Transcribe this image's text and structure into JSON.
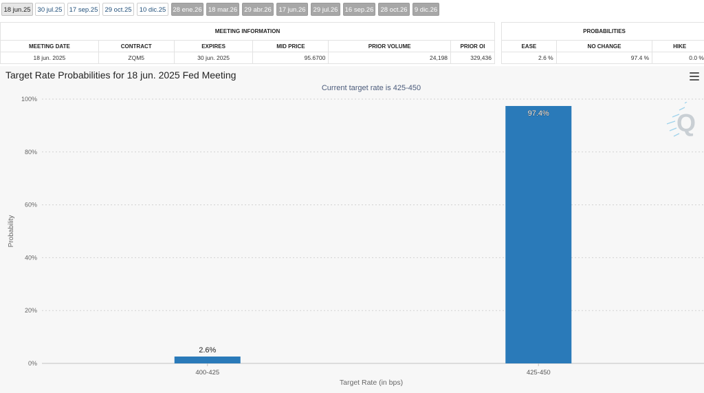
{
  "tabs": [
    {
      "label": "18 jun.25",
      "state": "active"
    },
    {
      "label": "30 jul.25",
      "state": "normal"
    },
    {
      "label": "17 sep.25",
      "state": "normal"
    },
    {
      "label": "29 oct.25",
      "state": "normal"
    },
    {
      "label": "10 dic.25",
      "state": "normal"
    },
    {
      "label": "28 ene.26",
      "state": "disabled"
    },
    {
      "label": "18 mar.26",
      "state": "disabled"
    },
    {
      "label": "29 abr.26",
      "state": "disabled"
    },
    {
      "label": "17 jun.26",
      "state": "disabled"
    },
    {
      "label": "29 jul.26",
      "state": "disabled"
    },
    {
      "label": "16 sep.26",
      "state": "disabled"
    },
    {
      "label": "28 oct.26",
      "state": "disabled"
    },
    {
      "label": "9 dic.26",
      "state": "disabled"
    }
  ],
  "meeting_info": {
    "title": "MEETING INFORMATION",
    "headers": [
      "MEETING DATE",
      "CONTRACT",
      "EXPIRES",
      "MID PRICE",
      "PRIOR VOLUME",
      "PRIOR OI"
    ],
    "row": [
      "18 jun. 2025",
      "ZQM5",
      "30 jun. 2025",
      "95.6700",
      "24,198",
      "329,436"
    ]
  },
  "probabilities": {
    "title": "PROBABILITIES",
    "headers": [
      "EASE",
      "NO CHANGE",
      "HIKE"
    ],
    "row": [
      "2.6 %",
      "97.4 %",
      "0.0 %"
    ]
  },
  "colors": {
    "bar": "#2a7ab9",
    "tab_disabled": "#a7a7a7",
    "panel_bg": "#f7f7f7"
  },
  "chart_data": {
    "type": "bar",
    "title": "Target Rate Probabilities for 18 jun. 2025 Fed Meeting",
    "subtitle": "Current target rate is 425-450",
    "xlabel": "Target Rate (in bps)",
    "ylabel": "Probability",
    "categories": [
      "400-425",
      "425-450"
    ],
    "values": [
      2.6,
      97.4
    ],
    "data_labels": [
      "2.6%",
      "97.4%"
    ],
    "ylim": [
      0,
      100
    ],
    "yticks": [
      0,
      20,
      40,
      60,
      80,
      100
    ],
    "ytick_labels": [
      "0%",
      "20%",
      "40%",
      "60%",
      "80%",
      "100%"
    ],
    "grid": true,
    "legend": "none"
  }
}
